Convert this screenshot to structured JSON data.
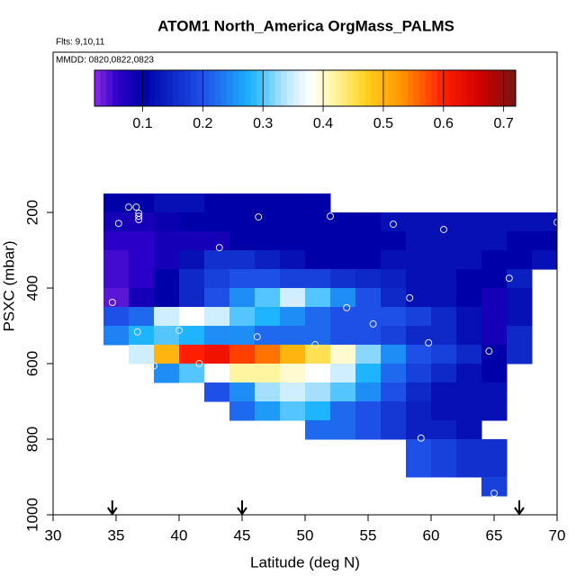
{
  "chart_data": {
    "type": "heatmap",
    "title": "ATOM1 North_America OrgMass_PALMS",
    "subtitle": "Flts: 9,10,11",
    "annotation": "MMDD: 0820,0822,0823",
    "x_label": "Latitude (deg N)",
    "y_label": "PSXC (mbar)",
    "xlim": [
      30,
      70
    ],
    "xticks": [
      30,
      35,
      40,
      45,
      50,
      55,
      60,
      65,
      70
    ],
    "ylim": [
      1000,
      -224
    ],
    "yticks": [
      200,
      400,
      600,
      800,
      1000
    ],
    "x": [
      35,
      37,
      39,
      41,
      43,
      45,
      47,
      49,
      51,
      53,
      55,
      57,
      59,
      61,
      63,
      65,
      67,
      69
    ],
    "y": [
      175,
      225,
      275,
      325,
      375,
      425,
      475,
      525,
      575,
      625,
      675,
      725,
      775,
      825,
      875,
      925
    ],
    "z": [
      [
        0.1,
        0.1,
        0.12,
        0.12,
        0.1,
        0.1,
        0.1,
        0.1,
        0.1,
        null,
        null,
        null,
        null,
        null,
        null,
        null,
        null,
        null
      ],
      [
        0.08,
        0.08,
        0.09,
        0.1,
        0.1,
        0.1,
        0.1,
        0.1,
        0.1,
        0.1,
        0.1,
        0.12,
        0.12,
        0.12,
        0.12,
        0.12,
        0.12,
        0.12
      ],
      [
        0.06,
        0.06,
        0.08,
        0.08,
        0.08,
        0.1,
        0.1,
        0.1,
        0.1,
        0.1,
        0.1,
        0.1,
        0.12,
        0.12,
        0.12,
        0.12,
        0.1,
        0.1
      ],
      [
        0.05,
        0.06,
        0.08,
        0.12,
        0.16,
        0.16,
        0.14,
        0.12,
        0.1,
        0.1,
        0.1,
        0.12,
        0.12,
        0.12,
        0.12,
        0.1,
        0.1,
        0.12
      ],
      [
        0.05,
        0.06,
        0.1,
        0.15,
        0.18,
        0.2,
        0.2,
        0.18,
        0.18,
        0.16,
        0.15,
        0.14,
        0.12,
        0.12,
        0.1,
        0.1,
        0.14,
        null
      ],
      [
        0.04,
        0.08,
        0.1,
        0.15,
        0.2,
        0.25,
        0.3,
        0.35,
        0.3,
        0.25,
        0.2,
        0.15,
        0.12,
        0.12,
        0.1,
        0.08,
        0.12,
        null
      ],
      [
        0.2,
        0.22,
        0.35,
        0.38,
        0.35,
        0.3,
        0.28,
        0.25,
        0.22,
        0.2,
        0.2,
        0.2,
        0.18,
        0.15,
        0.12,
        0.08,
        0.12,
        null
      ],
      [
        0.24,
        0.28,
        0.3,
        0.28,
        0.25,
        0.25,
        0.22,
        0.22,
        0.22,
        0.2,
        0.2,
        0.18,
        0.15,
        0.15,
        0.12,
        0.08,
        0.15,
        null
      ],
      [
        null,
        0.35,
        0.5,
        0.6,
        0.62,
        0.58,
        0.55,
        0.5,
        0.45,
        0.4,
        0.32,
        0.25,
        0.2,
        0.18,
        0.15,
        0.1,
        0.15,
        null
      ],
      [
        null,
        null,
        0.25,
        0.3,
        0.38,
        0.42,
        0.42,
        0.4,
        0.38,
        0.35,
        0.28,
        0.22,
        0.18,
        0.15,
        0.12,
        0.1,
        null,
        null
      ],
      [
        null,
        null,
        null,
        null,
        0.2,
        0.25,
        0.33,
        0.35,
        0.33,
        0.3,
        0.25,
        0.2,
        0.15,
        0.12,
        0.12,
        0.12,
        null,
        null
      ],
      [
        null,
        null,
        null,
        null,
        null,
        0.22,
        0.26,
        0.3,
        0.28,
        0.22,
        0.2,
        0.17,
        0.14,
        0.12,
        0.12,
        0.12,
        null,
        null
      ],
      [
        null,
        null,
        null,
        null,
        null,
        null,
        null,
        null,
        0.22,
        0.22,
        0.2,
        0.17,
        0.14,
        0.14,
        0.12,
        null,
        null,
        null
      ],
      [
        null,
        null,
        null,
        null,
        null,
        null,
        null,
        null,
        null,
        null,
        null,
        null,
        0.2,
        0.18,
        0.16,
        0.16,
        null,
        null
      ],
      [
        null,
        null,
        null,
        null,
        null,
        null,
        null,
        null,
        null,
        null,
        null,
        null,
        0.2,
        0.18,
        0.16,
        0.16,
        null,
        null
      ],
      [
        null,
        null,
        null,
        null,
        null,
        null,
        null,
        null,
        null,
        null,
        null,
        null,
        null,
        null,
        null,
        0.18,
        null,
        null
      ]
    ],
    "clim": [
      0.02,
      0.72
    ],
    "cticks": [
      0.1,
      0.2,
      0.3,
      0.4,
      0.5,
      0.6,
      0.7
    ],
    "colorscale": [
      [
        0.02,
        "#8a2be2"
      ],
      [
        0.06,
        "#2a00c8"
      ],
      [
        0.1,
        "#0000a8"
      ],
      [
        0.2,
        "#1e50e8"
      ],
      [
        0.28,
        "#1eb4ff"
      ],
      [
        0.34,
        "#bfe8ff"
      ],
      [
        0.38,
        "#ffffff"
      ],
      [
        0.42,
        "#fff5a0"
      ],
      [
        0.47,
        "#ffd21e"
      ],
      [
        0.53,
        "#ff9600"
      ],
      [
        0.6,
        "#ff1e00"
      ],
      [
        0.66,
        "#d20000"
      ],
      [
        0.72,
        "#781414"
      ]
    ],
    "points": {
      "x": [
        35.2,
        36,
        36.6,
        36.8,
        36.8,
        36.8,
        43.2,
        46.3,
        52,
        57,
        61,
        70,
        66.2,
        58.3,
        53.3,
        49.2,
        34.7,
        36.7,
        40,
        46.2,
        50.8,
        55.4,
        59.8,
        64.6,
        41.6,
        38,
        59.2,
        65
      ],
      "y": [
        229,
        186,
        186,
        202,
        210,
        219,
        293,
        212,
        210,
        231,
        245,
        226,
        374,
        426,
        452,
        438,
        438,
        516,
        512,
        529,
        550,
        495,
        545,
        567,
        600,
        606,
        797,
        943
      ]
    },
    "arrows": [
      34.7,
      45,
      67
    ]
  }
}
